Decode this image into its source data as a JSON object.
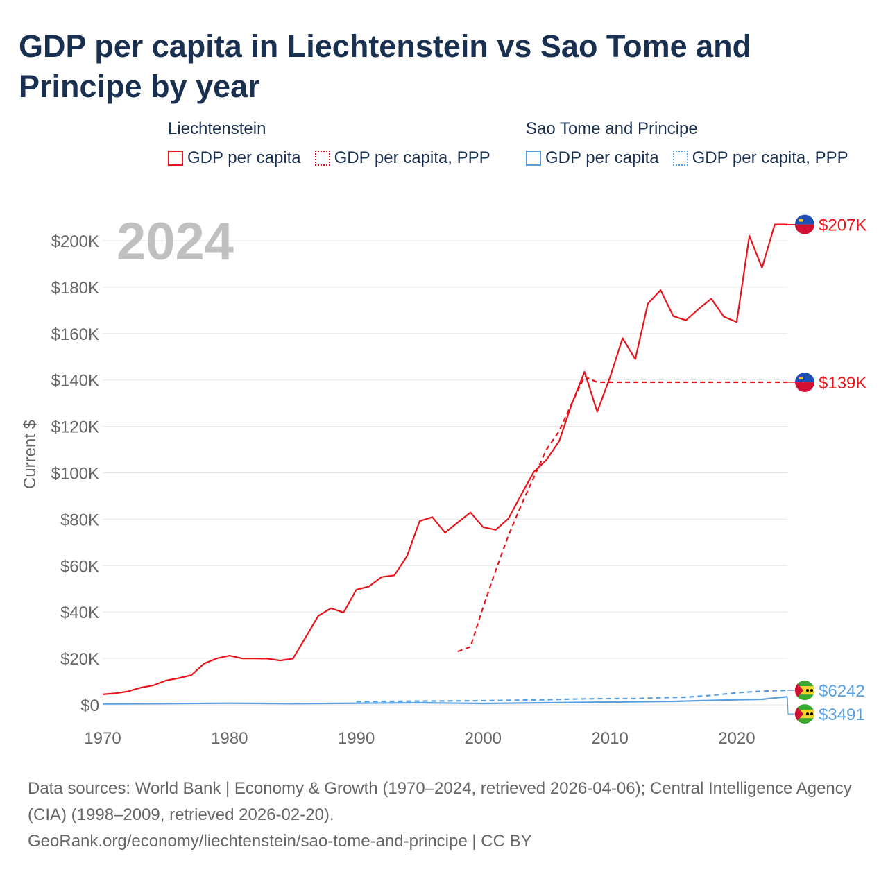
{
  "title": "GDP per capita in Liechtenstein vs Sao Tome and Principe by year",
  "legend": {
    "liechtenstein": {
      "name": "Liechtenstein",
      "gdp": "GDP per capita",
      "ppp": "GDP per capita, PPP"
    },
    "sao_tome": {
      "name": "Sao Tome and Principe",
      "gdp": "GDP per capita",
      "ppp": "GDP per capita, PPP"
    }
  },
  "year_label": "2024",
  "source": {
    "line1": "Data sources: World Bank | Economy & Growth (1970–2024, retrieved 2026-04-06); Central Intelligence Agency (CIA) (1998–2009, retrieved 2026-02-20).",
    "line2": "GeoRank.org/economy/liechtenstein/sao-tome-and-principe | CC BY"
  },
  "colors": {
    "liechtenstein": "#e8141b",
    "sao_tome": "#5aa0e0",
    "grid": "#e6e6e6",
    "axis_text": "#666666",
    "year_label": "#c0c0c0"
  },
  "chart_data": {
    "type": "line",
    "title": "GDP per capita in Liechtenstein vs Sao Tome and Principe by year",
    "xlabel": "",
    "ylabel": "Current $",
    "xlim": [
      1970,
      2024
    ],
    "ylim": [
      0,
      207000
    ],
    "x_ticks": [
      1970,
      1980,
      1990,
      2000,
      2010,
      2020
    ],
    "y_ticks": [
      0,
      20000,
      40000,
      60000,
      80000,
      100000,
      120000,
      140000,
      160000,
      180000,
      200000
    ],
    "y_tick_labels": [
      "$0",
      "$20K",
      "$40K",
      "$60K",
      "$80K",
      "$100K",
      "$120K",
      "$140K",
      "$160K",
      "$180K",
      "$200K"
    ],
    "series": [
      {
        "name": "Liechtenstein GDP per capita",
        "style": "solid",
        "color": "#e8141b",
        "end_label": "$207K",
        "x": [
          1970,
          1971,
          1972,
          1973,
          1974,
          1975,
          1976,
          1977,
          1978,
          1979,
          1980,
          1981,
          1982,
          1983,
          1984,
          1985,
          1986,
          1987,
          1988,
          1989,
          1990,
          1991,
          1992,
          1993,
          1994,
          1995,
          1996,
          1997,
          1998,
          1999,
          2000,
          2001,
          2002,
          2003,
          2004,
          2005,
          2006,
          2007,
          2008,
          2009,
          2010,
          2011,
          2012,
          2013,
          2014,
          2015,
          2016,
          2017,
          2018,
          2019,
          2020,
          2021,
          2022,
          2023,
          2024
        ],
        "values": [
          4500,
          5000,
          5800,
          7400,
          8400,
          10500,
          11500,
          12800,
          17800,
          20000,
          21200,
          20000,
          20000,
          19900,
          19100,
          19900,
          29000,
          38300,
          41600,
          39800,
          49600,
          51000,
          55100,
          55800,
          64100,
          79200,
          80900,
          74200,
          78600,
          82900,
          76600,
          75400,
          80300,
          90500,
          100400,
          105600,
          113600,
          129800,
          143500,
          126300,
          141000,
          158000,
          149000,
          172900,
          178700,
          167500,
          165700,
          170600,
          175000,
          167200,
          165000,
          202100,
          188300,
          207000,
          207000
        ]
      },
      {
        "name": "Liechtenstein GDP per capita, PPP",
        "style": "dashed",
        "color": "#e8141b",
        "end_label": "$139K",
        "x": [
          1998,
          1999,
          2000,
          2001,
          2002,
          2003,
          2004,
          2005,
          2006,
          2007,
          2008,
          2009,
          2024
        ],
        "values": [
          23000,
          25000,
          42000,
          58000,
          73000,
          86000,
          98000,
          110000,
          118000,
          130000,
          141500,
          139000,
          139000
        ]
      },
      {
        "name": "Sao Tome and Principe GDP per capita",
        "style": "solid",
        "color": "#5aa0e0",
        "end_label": "$3491",
        "x": [
          1970,
          1975,
          1980,
          1985,
          1990,
          1995,
          2000,
          2005,
          2010,
          2015,
          2020,
          2022,
          2023,
          2024
        ],
        "values": [
          400,
          500,
          700,
          500,
          700,
          900,
          600,
          900,
          1200,
          1500,
          2200,
          2400,
          3000,
          3491
        ]
      },
      {
        "name": "Sao Tome and Principe GDP per capita, PPP",
        "style": "dashed",
        "color": "#5aa0e0",
        "end_label": "$6242",
        "x": [
          1990,
          1995,
          2000,
          2005,
          2008,
          2010,
          2012,
          2014,
          2016,
          2018,
          2020,
          2022,
          2024
        ],
        "values": [
          1400,
          1600,
          1800,
          2200,
          2600,
          2700,
          2700,
          3100,
          3300,
          4100,
          5200,
          5900,
          6242
        ]
      }
    ]
  }
}
